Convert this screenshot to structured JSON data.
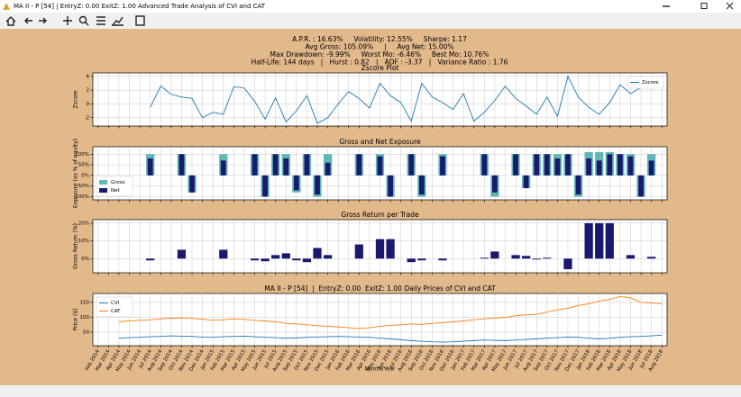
{
  "window": {
    "title": "MA II - P [54]  |  EntryZ: 0.00  ExitZ: 1.00 Advanced Trade Analysis of CVI and CAT"
  },
  "stats": [
    "A.P.R. : 16.63%     Volatility: 12.55%     Sharpe: 1.17",
    "Avg Gross: 105.09%     |     Avg Net: 15.00%",
    "Max Drawdown: -9.99%     Worst Mo: -6.46%     Best Mo: 10.76%",
    "Half-Life: 144 days   |   Hurst : 0.82   |   ADF : -3.37   |   Variance Ratio : 1.76"
  ],
  "chart_data": [
    {
      "type": "line",
      "title": "Zscore Plot",
      "y_label": "Zscore",
      "series": [
        {
          "name": "Zscore",
          "color": "#1f77b4",
          "values": [
            null,
            null,
            null,
            null,
            null,
            -0.5,
            2.6,
            1.4,
            1.0,
            0.8,
            -2.0,
            -1.2,
            -1.5,
            2.5,
            2.3,
            0.4,
            -2.2,
            0.9,
            -2.6,
            -1.0,
            1.2,
            -2.8,
            -2.0,
            0.0,
            1.8,
            0.8,
            -0.6,
            3.0,
            1.2,
            0.2,
            -2.5,
            3.0,
            1.0,
            0.2,
            -0.8,
            1.5,
            -2.5,
            -1.2,
            0.5,
            2.6,
            0.8,
            -0.3,
            -1.5,
            1.0,
            -1.8,
            4.0,
            1.0,
            -0.5,
            -1.5,
            0.2,
            2.8,
            1.5,
            2.4,
            null,
            null
          ]
        }
      ],
      "ylim": [
        -3.2,
        4.5
      ],
      "yticks": [
        -2,
        0,
        2,
        4
      ],
      "grid": true,
      "legend": "upper right"
    },
    {
      "type": "bar",
      "title": "Gross and Net Exposure",
      "y_label": "Exposure (as % of equity)",
      "series": [
        {
          "name": "Gross",
          "color": "#5fb8b4",
          "values": [
            null,
            null,
            null,
            null,
            null,
            100,
            null,
            null,
            100,
            -80,
            null,
            null,
            100,
            null,
            null,
            100,
            -100,
            100,
            100,
            -80,
            100,
            -100,
            100,
            null,
            null,
            100,
            null,
            100,
            -100,
            null,
            100,
            -100,
            null,
            100,
            null,
            null,
            null,
            100,
            -100,
            null,
            100,
            -60,
            100,
            100,
            100,
            100,
            -100,
            110,
            110,
            110,
            100,
            100,
            -100,
            100,
            null
          ]
        },
        {
          "name": "Net",
          "color": "#191970",
          "values": [
            null,
            null,
            null,
            null,
            null,
            80,
            null,
            null,
            100,
            -80,
            null,
            null,
            70,
            null,
            null,
            100,
            -100,
            100,
            80,
            -70,
            100,
            -90,
            60,
            null,
            null,
            100,
            null,
            90,
            -100,
            null,
            100,
            -90,
            null,
            90,
            null,
            null,
            null,
            100,
            -80,
            null,
            100,
            -60,
            100,
            100,
            80,
            100,
            -90,
            80,
            70,
            100,
            100,
            90,
            -100,
            70,
            null
          ]
        }
      ],
      "ylim": [
        -115,
        135
      ],
      "yticks": [
        {
          "value": -100,
          "label": "-100%"
        },
        {
          "value": -50,
          "label": "-50%"
        },
        {
          "value": 0,
          "label": "0%"
        },
        {
          "value": 50,
          "label": "50%"
        },
        {
          "value": 100,
          "label": "100%"
        }
      ],
      "grid": true,
      "legend": "lower left"
    },
    {
      "type": "bar",
      "title": "Gross Return per Trade",
      "y_label": "Gross Return (%)",
      "series": [
        {
          "color": "#191970",
          "values": [
            null,
            null,
            null,
            null,
            null,
            -1,
            null,
            null,
            5,
            null,
            null,
            null,
            5,
            null,
            null,
            -1,
            -1.5,
            2,
            3,
            -1,
            -2,
            6,
            2,
            null,
            null,
            8,
            null,
            11,
            11,
            null,
            -2,
            -1,
            null,
            -1,
            null,
            null,
            null,
            0.5,
            4,
            null,
            2,
            1.5,
            -0.5,
            0.5,
            0,
            -6,
            null,
            20,
            20,
            20,
            null,
            2,
            null,
            1,
            null
          ]
        }
      ],
      "ylim": [
        -8,
        22
      ],
      "yticks": [
        {
          "value": 0,
          "label": "0%"
        },
        {
          "value": 10,
          "label": "10%"
        },
        {
          "value": 20,
          "label": "20%"
        }
      ],
      "grid": true
    },
    {
      "type": "line",
      "title": "MA II - P [54]  |  EntryZ: 0.00  ExitZ: 1.00 Daily Prices of CVI and CAT",
      "x_label": "Month/Year",
      "y_label": "Price ($)",
      "categories": [
        "Feb 2014",
        "Mar 2014",
        "Apr 2014",
        "May 2014",
        "Jun 2014",
        "Jul 2014",
        "Aug 2014",
        "Sep 2014",
        "Oct 2014",
        "Nov 2014",
        "Dec 2014",
        "Jan 2015",
        "Feb 2015",
        "Mar 2015",
        "Apr 2015",
        "May 2015",
        "Jun 2015",
        "Jul 2015",
        "Aug 2015",
        "Sep 2015",
        "Oct 2015",
        "Nov 2015",
        "Dec 2015",
        "Jan 2016",
        "Feb 2016",
        "Mar 2016",
        "Apr 2016",
        "May 2016",
        "Jun 2016",
        "Jul 2016",
        "Aug 2016",
        "Sep 2016",
        "Oct 2016",
        "Nov 2016",
        "Dec 2016",
        "Jan 2017",
        "Feb 2017",
        "Mar 2017",
        "Apr 2017",
        "May 2017",
        "Jun 2017",
        "Jul 2017",
        "Aug 2017",
        "Sep 2017",
        "Oct 2017",
        "Nov 2017",
        "Dec 2017",
        "Jan 2018",
        "Feb 2018",
        "Mar 2018",
        "Apr 2018",
        "May 2018",
        "Jun 2018",
        "Jul 2018",
        "Aug 2018"
      ],
      "series": [
        {
          "name": "CVI",
          "color": "#1f77b4",
          "values": [
            null,
            null,
            30,
            32,
            33,
            35,
            36,
            38,
            37,
            36,
            34,
            33,
            35,
            36,
            37,
            35,
            33,
            32,
            30,
            31,
            33,
            34,
            35,
            36,
            35,
            34,
            33,
            30,
            28,
            25,
            22,
            20,
            18,
            17,
            18,
            20,
            22,
            24,
            23,
            22,
            24,
            26,
            28,
            30,
            32,
            34,
            33,
            30,
            28,
            30,
            33,
            35,
            36,
            38,
            40
          ]
        },
        {
          "name": "CAT",
          "color": "#ff7f0e",
          "values": [
            null,
            null,
            85,
            88,
            90,
            92,
            95,
            97,
            98,
            96,
            94,
            90,
            92,
            95,
            93,
            90,
            88,
            85,
            80,
            78,
            75,
            72,
            70,
            68,
            65,
            62,
            65,
            70,
            73,
            75,
            78,
            76,
            80,
            82,
            85,
            88,
            92,
            95,
            98,
            100,
            105,
            108,
            110,
            118,
            125,
            130,
            140,
            145,
            155,
            160,
            170,
            165,
            150,
            148,
            145
          ]
        }
      ],
      "ylim": [
        5,
        180
      ],
      "yticks": [
        50,
        100,
        150
      ],
      "grid": true,
      "legend": "upper left"
    }
  ]
}
